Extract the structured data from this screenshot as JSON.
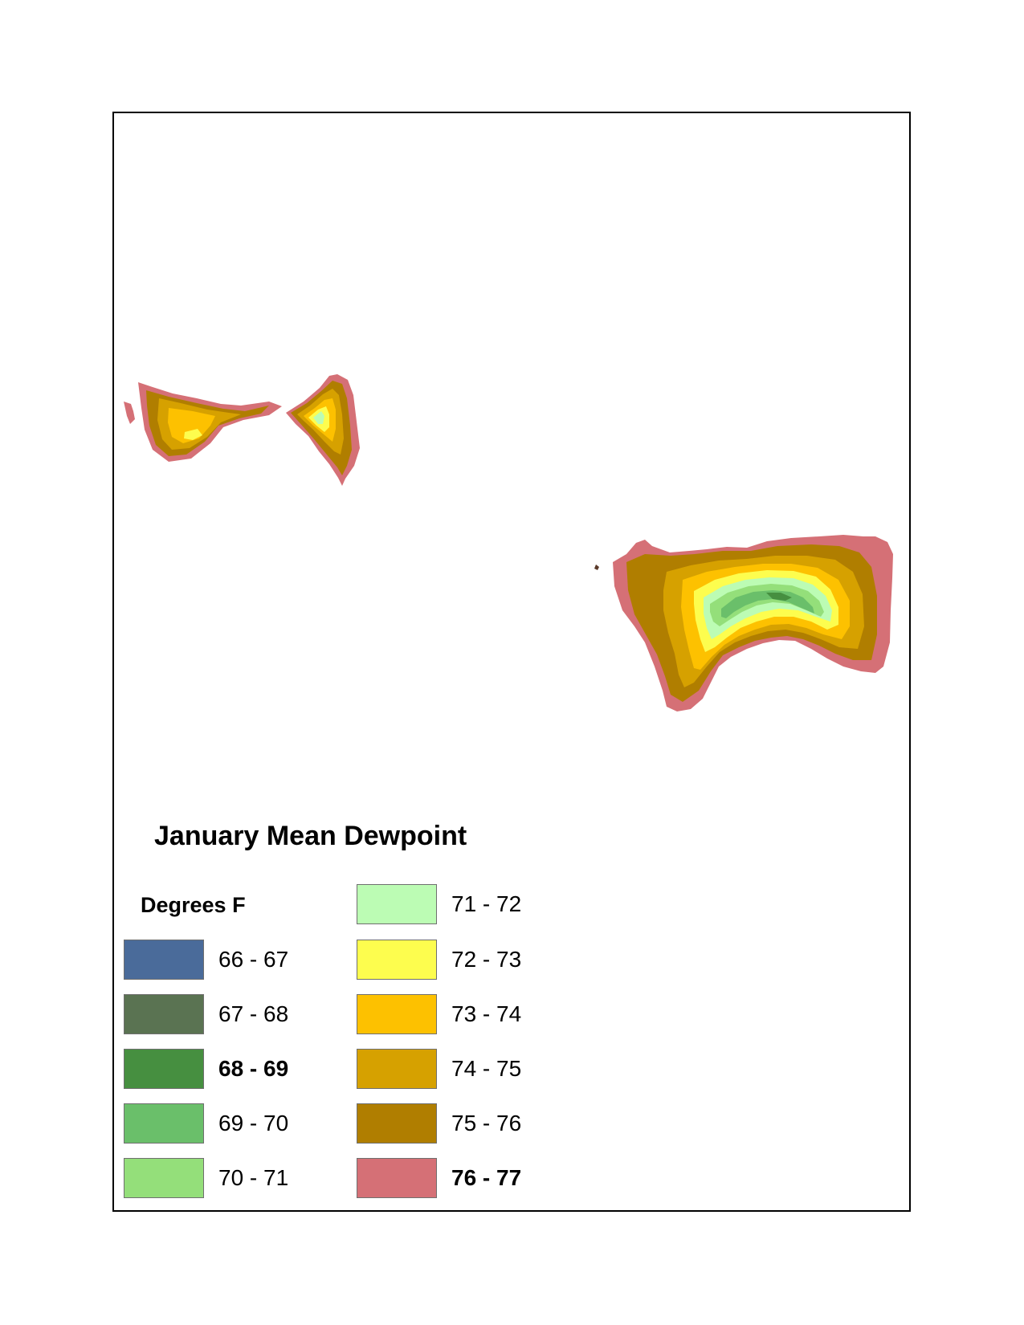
{
  "map": {
    "title": "January Mean Dewpoint",
    "legend": {
      "heading": "Degrees F",
      "classes": [
        {
          "label": "66 - 67",
          "color": "#4a6b9a",
          "bold": false
        },
        {
          "label": "67 - 68",
          "color": "#5a7352",
          "bold": false
        },
        {
          "label": "68 - 69",
          "color": "#468f40",
          "bold": true
        },
        {
          "label": "69 - 70",
          "color": "#6abf6a",
          "bold": false
        },
        {
          "label": "70 - 71",
          "color": "#94df7a",
          "bold": false
        },
        {
          "label": "71 - 72",
          "color": "#bcfcb4",
          "bold": false
        },
        {
          "label": "72 - 73",
          "color": "#fdfd4e",
          "bold": false
        },
        {
          "label": "73 - 74",
          "color": "#fdc100",
          "bold": false
        },
        {
          "label": "74 - 75",
          "color": "#d6a100",
          "bold": false
        },
        {
          "label": "75 - 76",
          "color": "#b07e00",
          "bold": false
        },
        {
          "label": "76 - 77",
          "color": "#d57076",
          "bold": true
        }
      ]
    }
  }
}
